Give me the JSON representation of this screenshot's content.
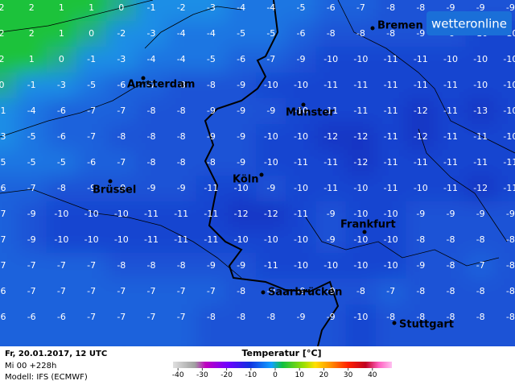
{
  "map": {
    "grid": [
      [
        2,
        2,
        1,
        1,
        0,
        -1,
        -2,
        -3,
        -4,
        -4,
        -5,
        -6,
        -7,
        -8,
        -8,
        -9,
        -9,
        -9
      ],
      [
        2,
        2,
        1,
        0,
        -2,
        -3,
        -4,
        -4,
        -5,
        -5,
        -6,
        -8,
        -8,
        -8,
        -9,
        -9,
        -10,
        -10
      ],
      [
        2,
        1,
        0,
        -1,
        -3,
        -4,
        -4,
        -5,
        -6,
        -7,
        -9,
        -10,
        -10,
        -11,
        -11,
        -10,
        -10,
        -10
      ],
      [
        0,
        -1,
        -3,
        -5,
        -6,
        -7,
        -8,
        -8,
        -9,
        -10,
        -10,
        -11,
        -11,
        -11,
        -11,
        -11,
        -10,
        -10
      ],
      [
        -1,
        -4,
        -6,
        -7,
        -7,
        -8,
        -8,
        -9,
        -9,
        -9,
        -10,
        -11,
        -11,
        -11,
        -12,
        -11,
        -13,
        -10
      ],
      [
        -3,
        -5,
        -6,
        -7,
        -8,
        -8,
        -8,
        -9,
        -9,
        -10,
        -10,
        -12,
        -12,
        -11,
        -12,
        -11,
        -11,
        -10
      ],
      [
        -5,
        -5,
        -5,
        -6,
        -7,
        -8,
        -8,
        -8,
        -9,
        -10,
        -11,
        -11,
        -12,
        -11,
        -11,
        -11,
        -11,
        -11
      ],
      [
        -6,
        -7,
        -8,
        -9,
        -9,
        -9,
        -9,
        -11,
        -10,
        -9,
        -10,
        -11,
        -10,
        -11,
        -10,
        -11,
        -12,
        -11
      ],
      [
        -7,
        -9,
        -10,
        -10,
        -10,
        -11,
        -11,
        -11,
        -12,
        -12,
        -11,
        -9,
        -10,
        -10,
        -9,
        -9,
        -9,
        -9
      ],
      [
        -7,
        -9,
        -10,
        -10,
        -10,
        -11,
        -11,
        -11,
        -10,
        -10,
        -10,
        -9,
        -10,
        -10,
        -8,
        -8,
        -8,
        -8
      ],
      [
        -7,
        -7,
        -7,
        -7,
        -8,
        -8,
        -8,
        -9,
        -9,
        -11,
        -10,
        -10,
        -10,
        -10,
        -9,
        -8,
        -7,
        -8
      ],
      [
        -6,
        -7,
        -7,
        -7,
        -7,
        -7,
        -7,
        -7,
        -8,
        -9,
        -9,
        -9,
        -8,
        -7,
        -8,
        -8,
        -8,
        -8
      ],
      [
        -6,
        -6,
        -6,
        -7,
        -7,
        -7,
        -7,
        -8,
        -8,
        -8,
        -9,
        -9,
        -10,
        -8,
        -8,
        -8,
        -8,
        -8
      ]
    ],
    "cities": [
      "Bremen",
      "Amsterdam",
      "Münster",
      "Köln",
      "Brüssel",
      "Frankfurt",
      "Saarbrücken",
      "Stuttgart"
    ],
    "logo": "wetteronline",
    "footer": {
      "date": "Fr, 20.01.2017, 12 UTC",
      "run": "Mi 00 +228h",
      "model": "Modell: IFS (ECMWF)"
    },
    "legend": {
      "title": "Temperatur [°C]",
      "ticks": [
        -40,
        -30,
        -20,
        -10,
        0,
        10,
        20,
        30,
        40
      ]
    }
  }
}
